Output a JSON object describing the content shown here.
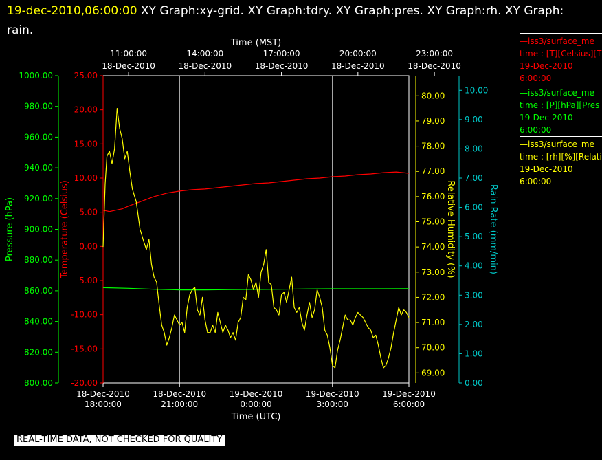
{
  "header": {
    "date": "19-dec-2010,06:00:00",
    "title": "XY Graph:xy-grid.  XY Graph:tdry.  XY Graph:pres.  XY Graph:rh.  XY Graph: rain."
  },
  "disclaimer": "REAL-TIME DATA, NOT CHECKED FOR QUALITY",
  "legend": [
    {
      "color": "#ff0000",
      "lines": [
        "—iss3/surface_me",
        "time : [T][Celsius][T",
        "19-Dec-2010",
        "6:00:00"
      ]
    },
    {
      "color": "#00ff00",
      "lines": [
        "—iss3/surface_me",
        "time : [P][hPa][Pres",
        "19-Dec-2010",
        "6:00:00"
      ]
    },
    {
      "color": "#ffff00",
      "lines": [
        "—iss3/surface_me",
        "time : [rh][%][Relati",
        "19-Dec-2010",
        "6:00:00"
      ]
    }
  ],
  "chart_data": {
    "type": "line",
    "x_top_label": "Time (MST)",
    "x_bottom_label": "Time (UTC)",
    "x_range_hours": [
      0,
      12
    ],
    "top_ticks": [
      {
        "t": 1,
        "l1": "11:00:00",
        "l2": "18-Dec-2010"
      },
      {
        "t": 4,
        "l1": "14:00:00",
        "l2": "18-Dec-2010"
      },
      {
        "t": 7,
        "l1": "17:00:00",
        "l2": "18-Dec-2010"
      },
      {
        "t": 10,
        "l1": "20:00:00",
        "l2": "18-Dec-2010"
      },
      {
        "t": 13,
        "l1": "23:00:00",
        "l2": "18-Dec-2010"
      }
    ],
    "bottom_ticks": [
      {
        "t": 0,
        "l1": "18-Dec-2010",
        "l2": "18:00:00"
      },
      {
        "t": 3,
        "l1": "18-Dec-2010",
        "l2": "21:00:00"
      },
      {
        "t": 6,
        "l1": "19-Dec-2010",
        "l2": "0:00:00"
      },
      {
        "t": 9,
        "l1": "19-Dec-2010",
        "l2": "3:00:00"
      },
      {
        "t": 12,
        "l1": "19-Dec-2010",
        "l2": "6:00:00"
      }
    ],
    "axes": {
      "pressure": {
        "label": "Pressure (hPa)",
        "color": "#00ff00",
        "range": [
          800,
          1000
        ],
        "ticks": [
          "800.00",
          "820.00",
          "840.00",
          "860.00",
          "880.00",
          "900.00",
          "920.00",
          "940.00",
          "960.00",
          "980.00",
          "1000.00"
        ]
      },
      "temperature": {
        "label": "Temperature (Celsius)",
        "color": "#ff0000",
        "range": [
          -20,
          25
        ],
        "ticks": [
          "-20.00",
          "-15.00",
          "-10.00",
          "-5.00",
          "0.00",
          "5.00",
          "10.00",
          "15.00",
          "20.00",
          "25.00"
        ]
      },
      "rh": {
        "label": "Relative Humidity (%)",
        "color": "#ffff00",
        "range": [
          68.6,
          80.8
        ],
        "ticks": [
          "69.00",
          "70.00",
          "71.00",
          "72.00",
          "73.00",
          "74.00",
          "75.00",
          "76.00",
          "77.00",
          "78.00",
          "79.00",
          "80.00"
        ]
      },
      "rain": {
        "label": "Rain Rate (mm/min)",
        "color": "#00c8c8",
        "range": [
          0,
          10.5
        ],
        "ticks": [
          "0.00",
          "1.00",
          "2.00",
          "3.00",
          "4.00",
          "5.00",
          "6.00",
          "7.00",
          "8.00",
          "9.00",
          "10.00"
        ]
      }
    },
    "series": [
      {
        "name": "temperature",
        "axis": "temperature",
        "color": "#ff0000",
        "t": [
          0,
          0.25,
          0.5,
          0.75,
          1,
          1.5,
          2,
          2.5,
          3,
          3.5,
          4,
          4.5,
          5,
          5.5,
          6,
          6.5,
          7,
          7.5,
          8,
          8.5,
          9,
          9.5,
          10,
          10.5,
          11,
          11.5,
          12
        ],
        "v": [
          5.3,
          5.1,
          5.3,
          5.5,
          5.9,
          6.6,
          7.3,
          7.8,
          8.1,
          8.3,
          8.4,
          8.6,
          8.8,
          9.0,
          9.2,
          9.3,
          9.5,
          9.7,
          9.9,
          10.0,
          10.2,
          10.3,
          10.5,
          10.6,
          10.8,
          10.9,
          10.7
        ]
      },
      {
        "name": "pressure",
        "axis": "pressure",
        "color": "#00ff00",
        "t": [
          0,
          1,
          2,
          3,
          4,
          5,
          6,
          7,
          8,
          9,
          10,
          11,
          12
        ],
        "v": [
          862.0,
          861.6,
          861.0,
          860.6,
          860.6,
          860.8,
          860.9,
          861.0,
          861.2,
          861.3,
          861.3,
          861.3,
          861.4
        ]
      },
      {
        "name": "rh",
        "axis": "rh",
        "color": "#ffff00",
        "t": [
          0,
          0.08,
          0.15,
          0.25,
          0.35,
          0.45,
          0.55,
          0.65,
          0.75,
          0.85,
          0.95,
          1.05,
          1.15,
          1.3,
          1.45,
          1.6,
          1.7,
          1.8,
          1.9,
          2.0,
          2.1,
          2.2,
          2.3,
          2.4,
          2.5,
          2.6,
          2.7,
          2.8,
          2.9,
          3.0,
          3.1,
          3.2,
          3.3,
          3.4,
          3.5,
          3.6,
          3.7,
          3.8,
          3.9,
          4.0,
          4.1,
          4.2,
          4.3,
          4.4,
          4.5,
          4.6,
          4.7,
          4.8,
          4.9,
          5.0,
          5.1,
          5.2,
          5.3,
          5.4,
          5.5,
          5.6,
          5.7,
          5.8,
          5.9,
          6.0,
          6.1,
          6.2,
          6.3,
          6.4,
          6.5,
          6.6,
          6.7,
          6.8,
          6.9,
          7.0,
          7.1,
          7.2,
          7.3,
          7.4,
          7.5,
          7.6,
          7.7,
          7.8,
          7.9,
          8.0,
          8.1,
          8.2,
          8.3,
          8.4,
          8.5,
          8.6,
          8.7,
          8.8,
          8.9,
          9.0,
          9.1,
          9.2,
          9.3,
          9.4,
          9.5,
          9.6,
          9.7,
          9.8,
          9.9,
          10.0,
          10.1,
          10.2,
          10.3,
          10.4,
          10.5,
          10.6,
          10.7,
          10.8,
          10.9,
          11.0,
          11.1,
          11.2,
          11.3,
          11.4,
          11.5,
          11.6,
          11.7,
          11.8,
          11.9,
          12.0
        ],
        "v": [
          74.0,
          76.5,
          77.6,
          77.8,
          77.3,
          77.9,
          79.5,
          78.7,
          78.3,
          77.5,
          77.8,
          77.0,
          76.3,
          75.8,
          74.7,
          74.2,
          73.9,
          74.3,
          73.3,
          72.8,
          72.6,
          71.7,
          70.9,
          70.6,
          70.1,
          70.4,
          70.8,
          71.3,
          71.1,
          70.9,
          71.0,
          70.6,
          71.6,
          72.1,
          72.3,
          72.4,
          71.5,
          71.3,
          72.0,
          71.1,
          70.6,
          70.6,
          70.9,
          70.6,
          71.4,
          71.0,
          70.6,
          70.9,
          70.7,
          70.4,
          70.6,
          70.3,
          71.0,
          71.2,
          72.0,
          71.9,
          72.9,
          72.7,
          72.3,
          72.6,
          72.0,
          73.0,
          73.3,
          73.9,
          72.6,
          72.5,
          71.6,
          71.5,
          71.3,
          72.1,
          72.2,
          71.8,
          72.3,
          72.8,
          71.6,
          71.4,
          71.6,
          71.0,
          70.7,
          71.3,
          71.8,
          71.2,
          71.5,
          72.3,
          72.0,
          71.6,
          70.7,
          70.5,
          70.0,
          69.3,
          69.2,
          69.9,
          70.3,
          70.8,
          71.3,
          71.1,
          71.1,
          70.9,
          71.2,
          71.4,
          71.3,
          71.2,
          71.0,
          70.8,
          70.7,
          70.4,
          70.5,
          70.1,
          69.6,
          69.2,
          69.3,
          69.6,
          70.0,
          70.6,
          71.1,
          71.6,
          71.3,
          71.5,
          71.4,
          71.2
        ]
      }
    ]
  }
}
